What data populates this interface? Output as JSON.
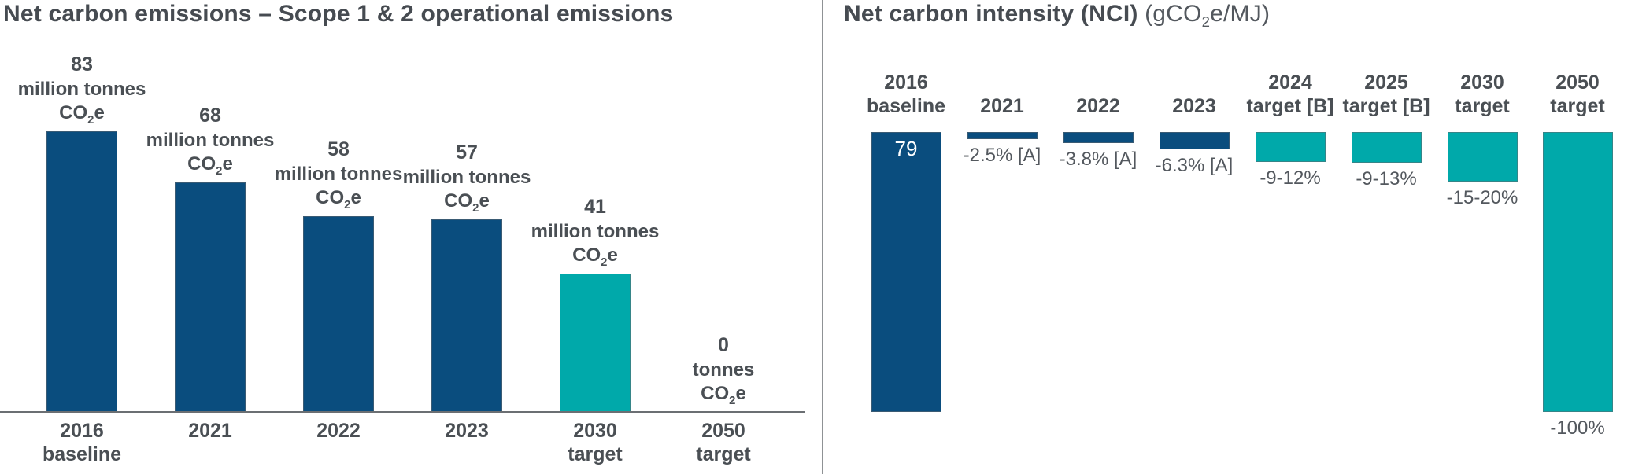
{
  "colors": {
    "navy": "#0a4d7e",
    "teal": "#00a9aa",
    "text": "#4a4f54",
    "title_text": "#464b51",
    "axis_line": "#6b6f73",
    "divider_line": "#8f9295",
    "in_bar_text": "#ffffff"
  },
  "chart_data": [
    {
      "type": "bar",
      "title": "Net carbon emissions – Scope 1 & 2 operational emissions",
      "categories": [
        "2016 baseline",
        "2021",
        "2022",
        "2023",
        "2030 target",
        "2050 target"
      ],
      "values": [
        83,
        68,
        58,
        57,
        41,
        0
      ],
      "unit": "million tonnes CO₂e",
      "ylim": [
        0,
        83
      ],
      "grid": false,
      "legend": false,
      "axis_label_lines": [
        [
          "2016",
          "baseline"
        ],
        [
          "2021"
        ],
        [
          "2022"
        ],
        [
          "2023"
        ],
        [
          "2030",
          "target"
        ],
        [
          "2050",
          "target"
        ]
      ],
      "bar_labels": [
        [
          "83",
          "million tonnes",
          "CO₂e"
        ],
        [
          "68",
          "million tonnes",
          "CO₂e"
        ],
        [
          "58",
          "million tonnes",
          "CO₂e"
        ],
        [
          "57",
          "million tonnes",
          "CO₂e"
        ],
        [
          "41",
          "million tonnes",
          "CO₂e"
        ],
        [
          "0",
          "tonnes",
          "CO₂e"
        ]
      ],
      "bar_colors": [
        "navy",
        "navy",
        "navy",
        "navy",
        "teal",
        "none"
      ]
    },
    {
      "type": "bar",
      "title_bold": "Net carbon intensity (NCI)",
      "title_suffix": " (gCO₂e/MJ)",
      "categories": [
        "2016 baseline",
        "2021",
        "2022",
        "2023",
        "2024 target [B]",
        "2025 target [B]",
        "2030 target",
        "2050 target"
      ],
      "header_lines": [
        [
          "2016",
          "baseline"
        ],
        [
          "2021"
        ],
        [
          "2022"
        ],
        [
          "2023"
        ],
        [
          "2024",
          "target [B]"
        ],
        [
          "2025",
          "target [B]"
        ],
        [
          "2030",
          "target"
        ],
        [
          "2050",
          "target"
        ]
      ],
      "baseline_value": 79,
      "in_bar_label": "79",
      "bar_value_labels": [
        "",
        "-2.5% [A]",
        "-3.8% [A]",
        "-6.3% [A]",
        "-9-12%",
        "-9-13%",
        "-15-20%",
        "-100%"
      ],
      "bar_height_pct_of_baseline": [
        100,
        2.5,
        3.8,
        6.3,
        10.7,
        11,
        17.7,
        100
      ],
      "bar_colors": [
        "navy",
        "navy",
        "navy",
        "navy",
        "teal",
        "teal",
        "teal",
        "teal"
      ],
      "grid": false,
      "legend": false
    }
  ]
}
